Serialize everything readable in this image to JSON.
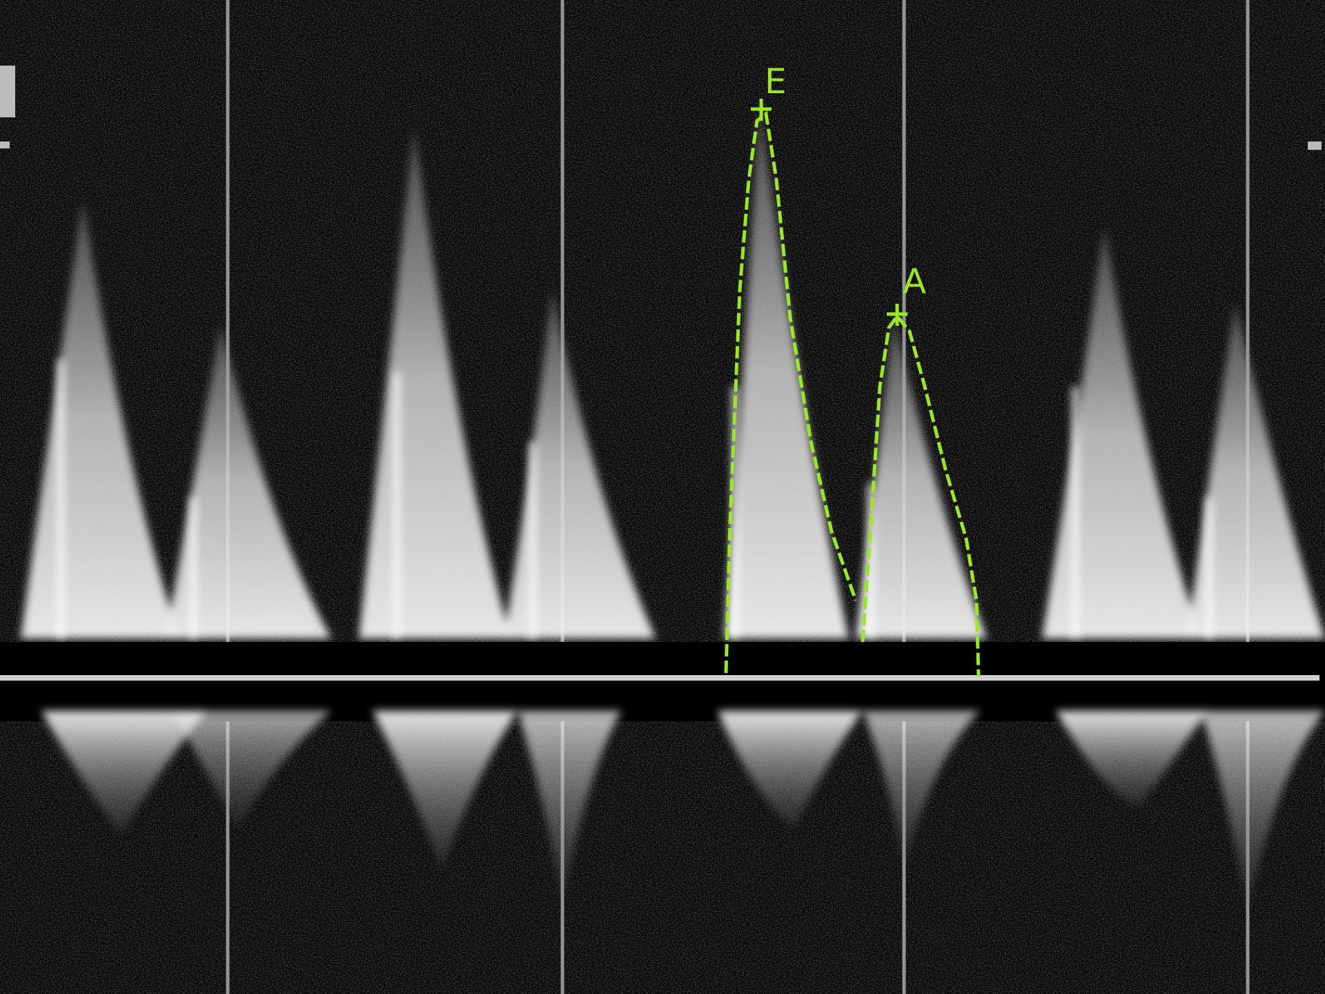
{
  "annotations": {
    "e_label": "E",
    "a_label": "A"
  },
  "colors": {
    "background": "#050505",
    "signal": "#e8e8e8",
    "trace": "#9ce62a",
    "baseline": "#cfcfcf"
  }
}
